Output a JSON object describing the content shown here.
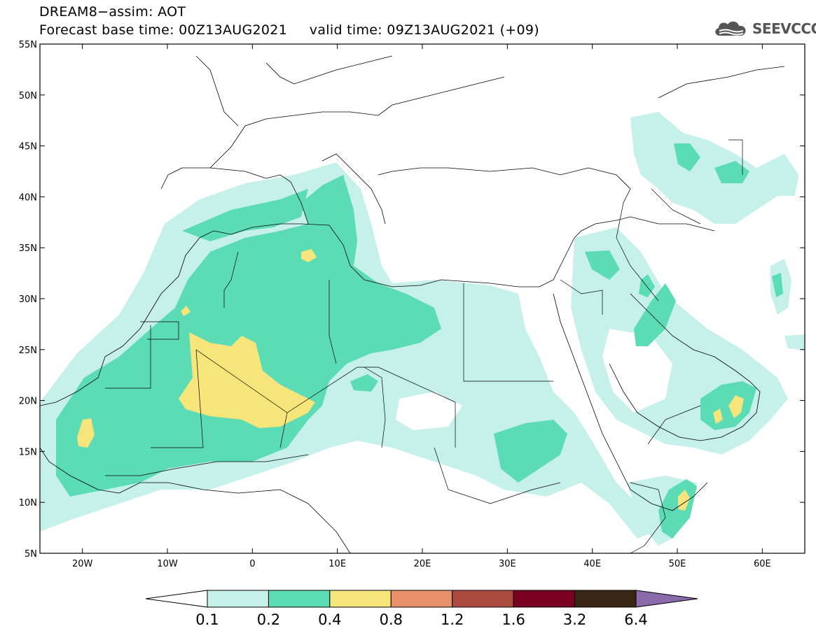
{
  "header": {
    "title_line1": "DREAM8−assim: AOT",
    "base_time": "Forecast base time: 00Z13AUG2021",
    "valid_time": "valid time: 09Z13AUG2021 (+09)"
  },
  "logo": {
    "text": "SEEVCCC",
    "icon": "cloud-icon",
    "color": "#555555"
  },
  "map": {
    "lon_range": [
      -25,
      65
    ],
    "lat_range": [
      5,
      55
    ],
    "lat_ticks": [
      "5N",
      "10N",
      "15N",
      "20N",
      "25N",
      "30N",
      "35N",
      "40N",
      "45N",
      "50N",
      "55N"
    ],
    "lon_ticks": [
      "20W",
      "10W",
      "0",
      "10E",
      "20E",
      "30E",
      "40E",
      "50E",
      "60E"
    ]
  },
  "colorbar": {
    "levels": [
      "0.1",
      "0.2",
      "0.4",
      "0.8",
      "1.2",
      "1.6",
      "3.2",
      "6.4"
    ],
    "colors": [
      "#ffffff",
      "#c6f0ea",
      "#5cdcb4",
      "#f5e57a",
      "#e8906a",
      "#aa4a3e",
      "#7a0024",
      "#3a2614",
      "#8a6aaa"
    ]
  }
}
